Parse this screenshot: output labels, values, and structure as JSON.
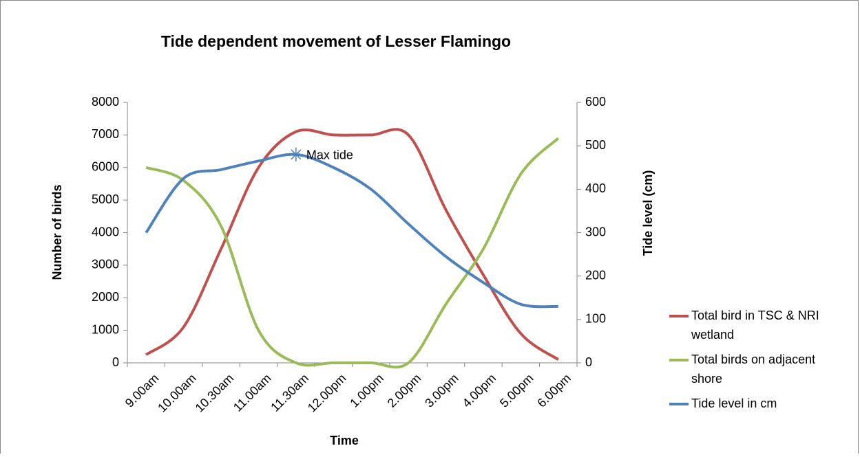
{
  "chart_data": {
    "type": "line",
    "title": "Tide dependent movement of Lesser Flamingo",
    "x_label": "Time",
    "y_label": "Number of birds",
    "y2_label": "Tide level (cm)",
    "categories": [
      "9.00am",
      "10.00am",
      "10.30am",
      "11.00am",
      "11.30am",
      "12.00pm",
      "1.00pm",
      "2.00pm",
      "3.00pm",
      "4.00pm",
      "5.00pm",
      "6.00pm"
    ],
    "series": [
      {
        "name": "Total bird in TSC & NRI wetland",
        "color": "#c0504d",
        "values": [
          250,
          1100,
          3500,
          6000,
          7100,
          7000,
          7000,
          7000,
          4700,
          2700,
          900,
          100
        ]
      },
      {
        "name": "Total birds on adjacent shore",
        "color": "#9bbb59",
        "values": [
          6000,
          5600,
          4200,
          1000,
          0,
          0,
          0,
          0,
          1800,
          3500,
          5800,
          6900
        ]
      },
      {
        "name": "Tide level in cm",
        "color": "#4f81bd",
        "axis": "y2",
        "values": [
          300,
          425,
          445,
          465,
          480,
          450,
          400,
          320,
          245,
          185,
          135,
          130
        ]
      }
    ],
    "annotations": [
      {
        "text": "Max tide",
        "series": 2,
        "index": 4
      }
    ],
    "ylim": [
      0,
      8000
    ],
    "yticks": [
      0,
      1000,
      2000,
      3000,
      4000,
      5000,
      6000,
      7000,
      8000
    ],
    "y2lim": [
      0,
      600
    ],
    "y2ticks": [
      0,
      100,
      200,
      300,
      400,
      500,
      600
    ],
    "legend": "right"
  }
}
